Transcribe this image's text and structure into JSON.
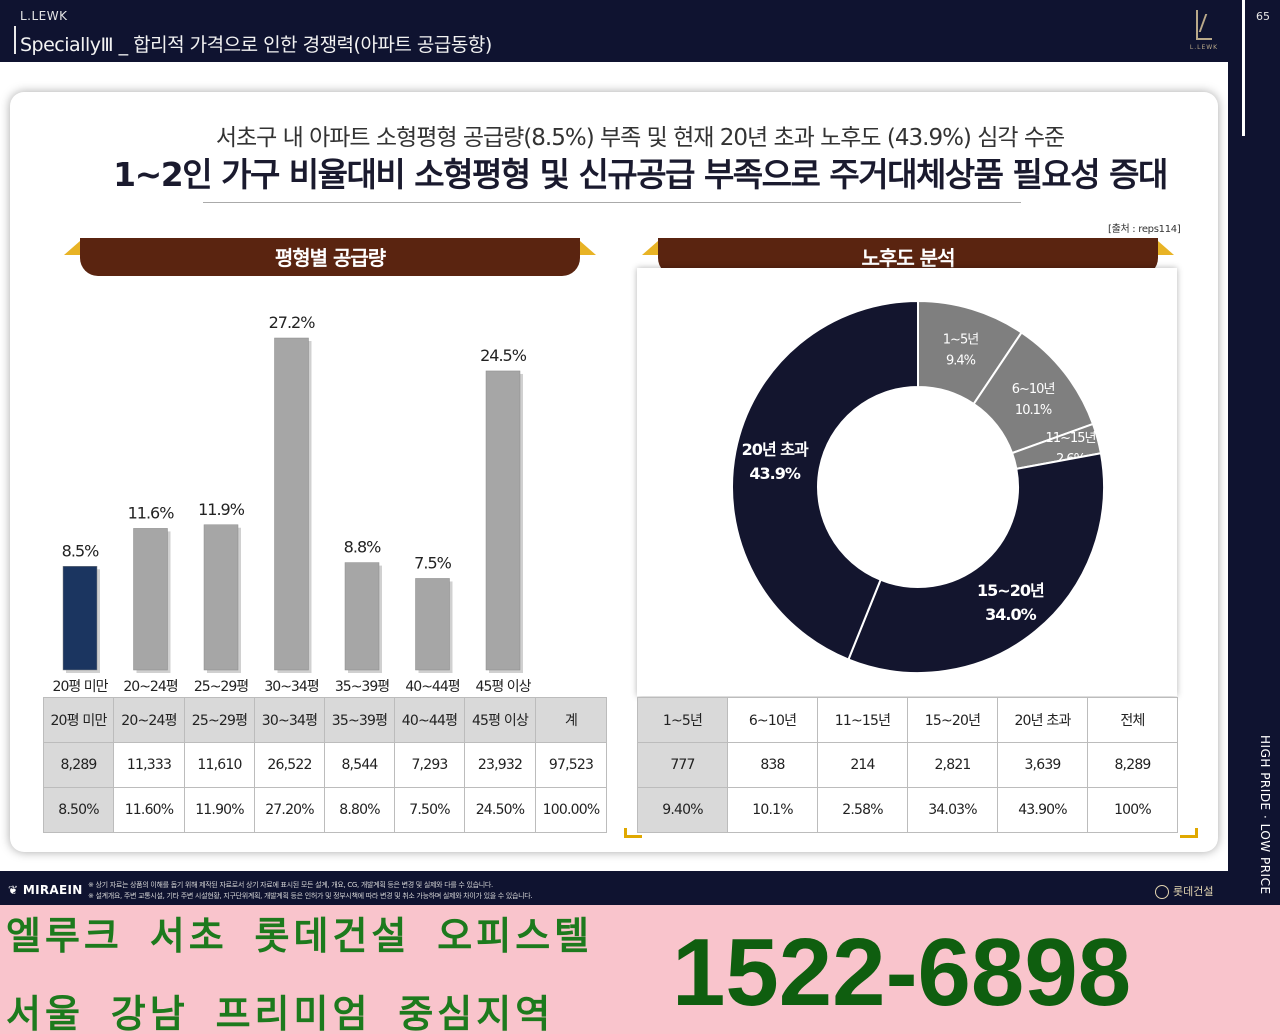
{
  "header": {
    "brand": "L.LEWK",
    "title": "SpeciallyⅢ _ 합리적 가격으로 인한 경쟁력(아파트 공급동향)",
    "logo_text": "L.LEWK",
    "page_number": "65"
  },
  "side_strip": {
    "vertical_text": "HIGH PRIDE · LOW PRICE"
  },
  "headline": {
    "line1": "서초구 내 아파트 소형평형 공급량(8.5%) 부족 및 현재 20년 초과 노후도 (43.9%) 심각 수준",
    "line2": "1~2인 가구 비율대비 소형평형 및 신규공급 부족으로 주거대체상품 필요성 증대"
  },
  "source": "[출처 : reps114]",
  "supply_section": {
    "title": "평형별 공급량",
    "table": {
      "headers": [
        "20평 미만",
        "20~24평",
        "25~29평",
        "30~34평",
        "35~39평",
        "40~44평",
        "45평 이상",
        "계"
      ],
      "counts": [
        "8,289",
        "11,333",
        "11,610",
        "26,522",
        "8,544",
        "7,293",
        "23,932",
        "97,523"
      ],
      "percents": [
        "8.50%",
        "11.60%",
        "11.90%",
        "27.20%",
        "8.80%",
        "7.50%",
        "24.50%",
        "100.00%"
      ]
    }
  },
  "age_section": {
    "title": "노후도 분석",
    "table": {
      "headers": [
        "1~5년",
        "6~10년",
        "11~15년",
        "15~20년",
        "20년 초과",
        "전체"
      ],
      "counts": [
        "777",
        "838",
        "214",
        "2,821",
        "3,639",
        "8,289"
      ],
      "percents": [
        "9.40%",
        "10.1%",
        "2.58%",
        "34.03%",
        "43.90%",
        "100%"
      ]
    }
  },
  "chart_data": [
    {
      "type": "bar",
      "categories": [
        "20평 미만",
        "20~24평",
        "25~29평",
        "30~34평",
        "35~39평",
        "40~44평",
        "45평 이상"
      ],
      "values": [
        8.5,
        11.6,
        11.9,
        27.2,
        8.8,
        7.5,
        24.5
      ],
      "data_labels": [
        "8.5%",
        "11.6%",
        "11.9%",
        "27.2%",
        "8.8%",
        "7.5%",
        "24.5%"
      ],
      "highlight_color": "#1b3560",
      "bar_color": "#a6a6a6",
      "title": "",
      "xlabel": "",
      "ylabel": ""
    },
    {
      "type": "pie",
      "style": "donut",
      "categories": [
        "1~5년",
        "6~10년",
        "11~15년",
        "15~20년",
        "20년 초과"
      ],
      "labels": [
        "1~5년",
        "6~10년",
        "11~15년",
        "15~20년",
        "20년 초과"
      ],
      "values": [
        9.4,
        10.1,
        2.6,
        34.0,
        43.9
      ],
      "value_labels": [
        "9.4%",
        "10.1%",
        "2.6%",
        "34.0%",
        "43.9%"
      ],
      "colors": [
        "#7f7f7f",
        "#7f7f7f",
        "#7f7f7f",
        "#13152e",
        "#13152e"
      ]
    }
  ],
  "footer": {
    "company": "MIRAEIN",
    "disclaimer1": "※ 상기 자료는 상품의 이해를 돕기 위해 제작된 자료로서 상기 자료에 표시된 모든 설계, 개요, CG, 개발계획 등은 변경 및 실제와 다를 수 있습니다.",
    "disclaimer2": "※ 설계개요, 주변 교통시설, 기타 주변 시설현황, 지구단위계획, 개발계획 등은 인허가 및 정부시책에 따라 변경 및 취소 가능하며 실제와 차이가 있을 수 있습니다.",
    "builder": "롯데건설"
  },
  "promo": {
    "line1": "엘루크 서초 롯데건설 오피스텔",
    "line2": "서울 강남 프리미엄 중심지역",
    "phone": "1522-6898"
  }
}
